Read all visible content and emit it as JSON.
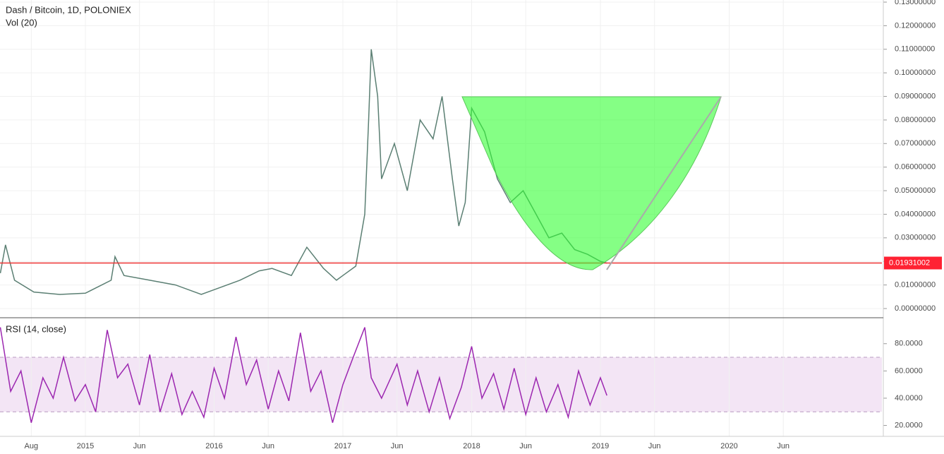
{
  "chart_data": {
    "type": "line",
    "title": "Dash / Bitcoin, 1D, POLONIEX",
    "subtitle": "Vol (20)",
    "rsi_title": "RSI (14, close)",
    "xlim": [
      2014.337,
      2021.186
    ],
    "xticks": [
      {
        "value": 2014.58,
        "label": "Aug"
      },
      {
        "value": 2015,
        "label": "2015"
      },
      {
        "value": 2015.42,
        "label": "Jun"
      },
      {
        "value": 2016,
        "label": "2016"
      },
      {
        "value": 2016.42,
        "label": "Jun"
      },
      {
        "value": 2017,
        "label": "2017"
      },
      {
        "value": 2017.42,
        "label": "Jun"
      },
      {
        "value": 2018,
        "label": "2018"
      },
      {
        "value": 2018.42,
        "label": "Jun"
      },
      {
        "value": 2019,
        "label": "2019"
      },
      {
        "value": 2019.42,
        "label": "Jun"
      },
      {
        "value": 2020,
        "label": "2020"
      },
      {
        "value": 2020.42,
        "label": "Jun"
      }
    ],
    "ylim": [
      -0.0039,
      0.1309
    ],
    "yticks": [
      {
        "value": 0,
        "label": "0.00000000"
      },
      {
        "value": 0.01,
        "label": "0.01000000"
      },
      {
        "value": 0.02,
        "label": "0.02000000"
      },
      {
        "value": 0.03,
        "label": "0.03000000"
      },
      {
        "value": 0.04,
        "label": "0.04000000"
      },
      {
        "value": 0.05,
        "label": "0.05000000"
      },
      {
        "value": 0.06,
        "label": "0.06000000"
      },
      {
        "value": 0.07,
        "label": "0.07000000"
      },
      {
        "value": 0.08,
        "label": "0.08000000"
      },
      {
        "value": 0.09,
        "label": "0.09000000"
      },
      {
        "value": 0.1,
        "label": "0.10000000"
      },
      {
        "value": 0.11,
        "label": "0.11000000"
      },
      {
        "value": 0.12,
        "label": "0.12000000"
      },
      {
        "value": 0.13,
        "label": "0.13000000"
      }
    ],
    "y2lim": [
      12,
      98
    ],
    "y2ticks": [
      {
        "value": 20,
        "label": "20.0000"
      },
      {
        "value": 40,
        "label": "40.0000"
      },
      {
        "value": 60,
        "label": "60.0000"
      },
      {
        "value": 80,
        "label": "80.0000"
      }
    ],
    "rsi_band": [
      30,
      70
    ],
    "last_price": {
      "value": 0.01931002,
      "label": "0.01931002"
    },
    "series": [
      {
        "name": "Dash / Bitcoin",
        "color": "#5b7f73",
        "x": [
          2014.34,
          2014.38,
          2014.45,
          2014.6,
          2014.8,
          2015.0,
          2015.2,
          2015.23,
          2015.3,
          2015.5,
          2015.7,
          2015.9,
          2016.0,
          2016.2,
          2016.35,
          2016.45,
          2016.6,
          2016.72,
          2016.85,
          2016.95,
          2017.0,
          2017.1,
          2017.17,
          2017.2,
          2017.22,
          2017.27,
          2017.3,
          2017.4,
          2017.5,
          2017.6,
          2017.7,
          2017.77,
          2017.85,
          2017.9,
          2017.95,
          2018.0,
          2018.1,
          2018.2,
          2018.3,
          2018.4,
          2018.5,
          2018.6,
          2018.7,
          2018.8,
          2018.9,
          2019.0,
          2019.05
        ],
        "values": [
          0.015,
          0.027,
          0.012,
          0.007,
          0.006,
          0.0065,
          0.012,
          0.022,
          0.014,
          0.012,
          0.01,
          0.006,
          0.008,
          0.012,
          0.016,
          0.017,
          0.014,
          0.026,
          0.017,
          0.012,
          0.014,
          0.018,
          0.04,
          0.08,
          0.11,
          0.09,
          0.055,
          0.07,
          0.05,
          0.08,
          0.072,
          0.09,
          0.055,
          0.035,
          0.045,
          0.085,
          0.075,
          0.055,
          0.045,
          0.05,
          0.04,
          0.03,
          0.032,
          0.025,
          0.023,
          0.02,
          0.0193
        ]
      },
      {
        "name": "RSI",
        "color": "#9c27b0",
        "axis": "y2",
        "x": [
          2014.34,
          2014.42,
          2014.5,
          2014.58,
          2014.67,
          2014.75,
          2014.83,
          2014.92,
          2015.0,
          2015.08,
          2015.17,
          2015.25,
          2015.33,
          2015.42,
          2015.5,
          2015.58,
          2015.67,
          2015.75,
          2015.83,
          2015.92,
          2016.0,
          2016.08,
          2016.17,
          2016.25,
          2016.33,
          2016.42,
          2016.5,
          2016.58,
          2016.67,
          2016.75,
          2016.83,
          2016.92,
          2017.0,
          2017.08,
          2017.17,
          2017.22,
          2017.3,
          2017.42,
          2017.5,
          2017.58,
          2017.67,
          2017.75,
          2017.83,
          2017.92,
          2018.0,
          2018.08,
          2018.17,
          2018.25,
          2018.33,
          2018.42,
          2018.5,
          2018.58,
          2018.67,
          2018.75,
          2018.83,
          2018.92,
          2019.0,
          2019.05
        ],
        "values": [
          92,
          45,
          60,
          22,
          55,
          40,
          70,
          38,
          50,
          30,
          90,
          55,
          65,
          35,
          72,
          30,
          58,
          28,
          45,
          26,
          62,
          40,
          85,
          50,
          68,
          32,
          60,
          38,
          88,
          45,
          60,
          22,
          50,
          70,
          92,
          55,
          40,
          65,
          35,
          60,
          30,
          55,
          25,
          48,
          78,
          40,
          58,
          32,
          62,
          28,
          55,
          30,
          50,
          26,
          60,
          35,
          55,
          42
        ]
      }
    ]
  }
}
